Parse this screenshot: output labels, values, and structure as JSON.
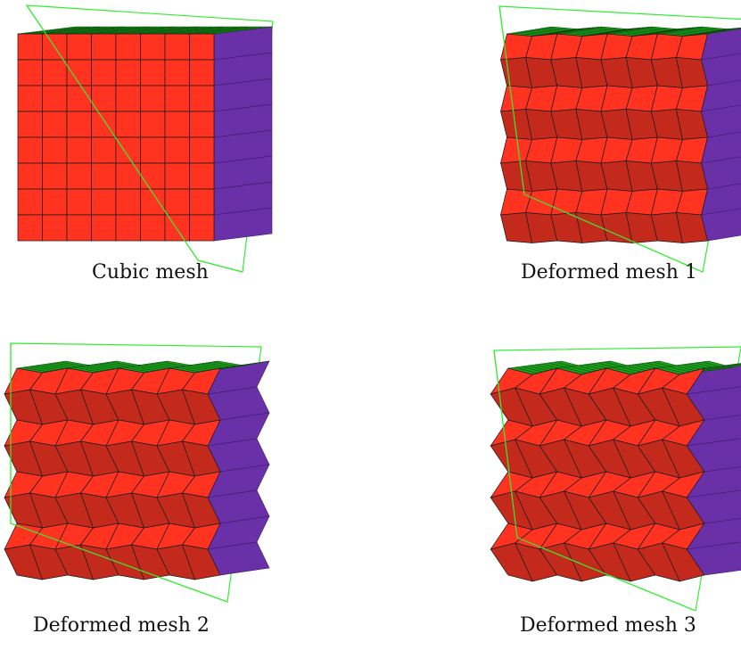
{
  "figure": {
    "panels": [
      {
        "id": "cubic",
        "caption": "Cubic mesh",
        "deformation": "none"
      },
      {
        "id": "deformed-1",
        "caption": "Deformed mesh 1",
        "deformation": "small"
      },
      {
        "id": "deformed-2",
        "caption": "Deformed mesh 2",
        "deformation": "medium"
      },
      {
        "id": "deformed-3",
        "caption": "Deformed mesh 3",
        "deformation": "large"
      }
    ],
    "grid_size": 8,
    "colors": {
      "front_face": "#ff3320",
      "front_face_shaded": "#c42a1c",
      "top_face": "#1aa01a",
      "side_face": "#6a30a8",
      "mesh_edges": "#1a1a1a",
      "bounding_box": "#33ee33"
    }
  }
}
